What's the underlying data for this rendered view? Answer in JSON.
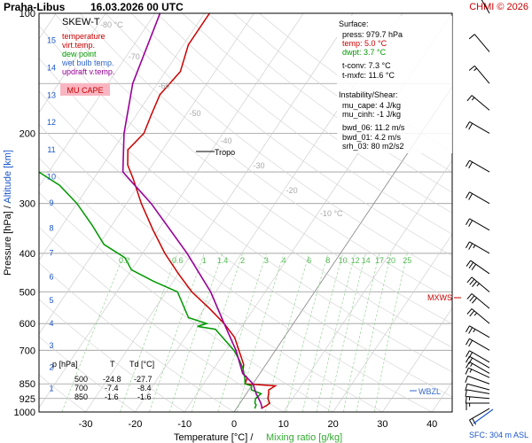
{
  "header": {
    "station": "Praha-Libus",
    "datetime": "16.03.2026 00 UTC",
    "copyright": "CHMI © 2026"
  },
  "legend": {
    "title": "SKEW-T",
    "items": [
      {
        "label": "temperature",
        "color": "#cc0000"
      },
      {
        "label": "virt.temp.",
        "color": "#cc0000"
      },
      {
        "label": "dew point",
        "color": "#009900"
      },
      {
        "label": "wet bulb temp.",
        "color": "#3366cc"
      },
      {
        "label": "updraft v.temp.",
        "color": "#990099"
      }
    ],
    "badge": "MU CAPE",
    "badge_color": "#f9b6c2"
  },
  "surface": {
    "title": "Surface:",
    "lines": [
      {
        "text": "press: 979.7 hPa",
        "color": "#000000"
      },
      {
        "text": "temp: 5.0 °C",
        "color": "#cc0000"
      },
      {
        "text": "dwpt: 3.7 °C",
        "color": "#009900"
      },
      {
        "text": "t-conv: 7.3 °C",
        "color": "#000000"
      },
      {
        "text": "t-mxfc: 11.6 °C",
        "color": "#000000"
      }
    ]
  },
  "instability": {
    "title": "Instability/Shear:",
    "lines": [
      "mu_cape: 4 J/kg",
      "mu_cinh: -1 J/kg",
      "bwd_06: 11.2 m/s",
      "bwd_01: 4.2 m/s",
      "srh_03: 80 m2/s2"
    ]
  },
  "table": {
    "headers": [
      "p [hPa]",
      "T",
      "Td [°C]"
    ],
    "rows": [
      [
        "500",
        "-24.8",
        "-27.7"
      ],
      [
        "700",
        "-7.4",
        "-8.4"
      ],
      [
        "850",
        "-1.6",
        "-1.6"
      ]
    ]
  },
  "annotations": {
    "tropo": "Tropo",
    "mxws": "MXWS",
    "wbzl": "WBZL",
    "sfc": "SFC: 304 m ASL"
  },
  "chart_data": {
    "type": "line",
    "xlabel": "Temperature [°C]",
    "xlabel2": "Mixing ratio [g/kg]",
    "ylabel": "Pressure [hPa]",
    "ylabel2": "Altitude [km]",
    "xlim": [
      -35,
      45
    ],
    "ylim": [
      1000,
      100
    ],
    "xticks": [
      "-30",
      "-20",
      "-10",
      "0",
      "10",
      "20",
      "30",
      "40"
    ],
    "yticks_pressure": [
      "100",
      "200",
      "300",
      "400",
      "500",
      "600",
      "700",
      "850",
      "925",
      "1000"
    ],
    "yticks_altitude": [
      "1",
      "2",
      "3",
      "4",
      "5",
      "6",
      "7",
      "8",
      "9",
      "10",
      "11",
      "12",
      "13",
      "14",
      "15",
      "16"
    ],
    "isotherm_labels": [
      "-80 °C",
      "-70",
      "-60",
      "-50",
      "-40",
      "-30",
      "-20",
      "-10 °C"
    ],
    "mixing_ratio_labels": [
      "0.2",
      "0.6",
      "1",
      "1.4",
      "2",
      "3",
      "4",
      "6",
      "8",
      "10",
      "12",
      "14",
      "17",
      "20",
      "25"
    ],
    "series": [
      {
        "name": "temperature",
        "color": "#cc0000",
        "points": [
          [
            5,
            980
          ],
          [
            5.8,
            960
          ],
          [
            6,
            950
          ],
          [
            5,
            925
          ],
          [
            4.5,
            900
          ],
          [
            4,
            880
          ],
          [
            4.8,
            860
          ],
          [
            -1.6,
            850
          ],
          [
            -2,
            820
          ],
          [
            -3.5,
            800
          ],
          [
            -4.5,
            760
          ],
          [
            -7.4,
            700
          ],
          [
            -10,
            650
          ],
          [
            -14,
            600
          ],
          [
            -19,
            550
          ],
          [
            -24.8,
            500
          ],
          [
            -30,
            450
          ],
          [
            -35.5,
            400
          ],
          [
            -41,
            350
          ],
          [
            -47,
            300
          ],
          [
            -52,
            260
          ],
          [
            -55,
            240
          ],
          [
            -57,
            220
          ],
          [
            -56,
            200
          ],
          [
            -57,
            180
          ],
          [
            -58,
            160
          ],
          [
            -57,
            140
          ],
          [
            -59,
            120
          ],
          [
            -59,
            100
          ]
        ]
      },
      {
        "name": "dew point",
        "color": "#009900",
        "points": [
          [
            3.7,
            980
          ],
          [
            3.5,
            960
          ],
          [
            3,
            950
          ],
          [
            2.5,
            925
          ],
          [
            3,
            900
          ],
          [
            0.5,
            880
          ],
          [
            0,
            860
          ],
          [
            -1.6,
            850
          ],
          [
            -2.5,
            820
          ],
          [
            -4,
            780
          ],
          [
            -6,
            740
          ],
          [
            -8.4,
            700
          ],
          [
            -15,
            620
          ],
          [
            -19,
            610
          ],
          [
            -17.5,
            600
          ],
          [
            -22,
            580
          ],
          [
            -27.7,
            500
          ],
          [
            -34,
            470
          ],
          [
            -40,
            440
          ],
          [
            -43,
            410
          ],
          [
            -49,
            380
          ],
          [
            -54,
            340
          ],
          [
            -60,
            300
          ],
          [
            -66,
            270
          ],
          [
            -72,
            250
          ],
          [
            -75,
            235
          ],
          [
            -77,
            210
          ],
          [
            -80,
            190
          ],
          [
            -84,
            160
          ],
          [
            -90,
            140
          ],
          [
            -97,
            120
          ],
          [
            -100,
            100
          ]
        ]
      },
      {
        "name": "updraft v.temp.",
        "color": "#990099",
        "points": [
          [
            5.2,
            980
          ],
          [
            4.2,
            950
          ],
          [
            2,
            900
          ],
          [
            0,
            850
          ],
          [
            -3.5,
            800
          ],
          [
            -8,
            700
          ],
          [
            -14,
            600
          ],
          [
            -21,
            500
          ],
          [
            -31,
            400
          ],
          [
            -45,
            300
          ],
          [
            -55,
            250
          ],
          [
            -60,
            200
          ],
          [
            -65,
            150
          ],
          [
            -69,
            100
          ]
        ]
      }
    ],
    "wind_barbs": [
      {
        "p": 980,
        "dir": 240,
        "speed": 20
      },
      {
        "p": 950,
        "dir": 270,
        "speed": 15
      },
      {
        "p": 925,
        "dir": 275,
        "speed": 15
      },
      {
        "p": 900,
        "dir": 280,
        "speed": 10
      },
      {
        "p": 880,
        "dir": 285,
        "speed": 10
      },
      {
        "p": 850,
        "dir": 290,
        "speed": 10
      },
      {
        "p": 820,
        "dir": 295,
        "speed": 15
      },
      {
        "p": 800,
        "dir": 300,
        "speed": 15
      },
      {
        "p": 775,
        "dir": 300,
        "speed": 20
      },
      {
        "p": 750,
        "dir": 300,
        "speed": 20
      },
      {
        "p": 700,
        "dir": 300,
        "speed": 20
      },
      {
        "p": 650,
        "dir": 300,
        "speed": 25
      },
      {
        "p": 600,
        "dir": 310,
        "speed": 25
      },
      {
        "p": 550,
        "dir": 310,
        "speed": 30
      },
      {
        "p": 500,
        "dir": 310,
        "speed": 35
      },
      {
        "p": 450,
        "dir": 305,
        "speed": 30
      },
      {
        "p": 400,
        "dir": 300,
        "speed": 25
      },
      {
        "p": 350,
        "dir": 300,
        "speed": 20
      },
      {
        "p": 300,
        "dir": 300,
        "speed": 20
      },
      {
        "p": 250,
        "dir": 300,
        "speed": 20
      },
      {
        "p": 200,
        "dir": 300,
        "speed": 20
      },
      {
        "p": 175,
        "dir": 310,
        "speed": 15
      },
      {
        "p": 150,
        "dir": 320,
        "speed": 15
      },
      {
        "p": 125,
        "dir": 320,
        "speed": 10
      },
      {
        "p": 100,
        "dir": 330,
        "speed": 10
      }
    ]
  }
}
